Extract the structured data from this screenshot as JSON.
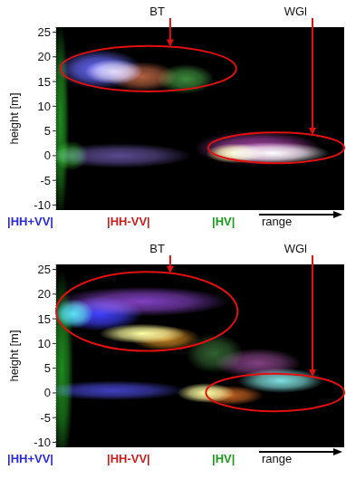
{
  "chart_data": [
    {
      "type": "image",
      "ylabel": "height [m]",
      "xlabel": "range",
      "xlim": [
        0,
        1
      ],
      "ylim": [
        -11,
        26
      ],
      "yticks": [
        -10,
        -5,
        0,
        5,
        10,
        15,
        20,
        25
      ],
      "tick_labels": "y",
      "series": [
        {
          "name": "|HH+VV|",
          "color": "#2b2bd6"
        },
        {
          "name": "|HH-VV|",
          "color": "#c81e1e"
        },
        {
          "name": "|HV|",
          "color": "#1a9a1a"
        }
      ],
      "annotations": [
        {
          "text": "BT",
          "arrow_x": 0.396,
          "x": 0.32,
          "y": 17.6,
          "rx": 0.305,
          "ry": 4.6
        },
        {
          "text": "WGl",
          "arrow_x": 0.89,
          "x": 0.764,
          "y": 1.6,
          "rx": 0.236,
          "ry": 3.1
        }
      ],
      "blobs": [
        {
          "x": 0.015,
          "y": 7,
          "rx": 0.03,
          "ry": 20,
          "color": "#1f8a1f"
        },
        {
          "x": 0.15,
          "y": 17.5,
          "rx": 0.15,
          "ry": 4,
          "color": "#6a6aff"
        },
        {
          "x": 0.2,
          "y": 17,
          "rx": 0.1,
          "ry": 2.5,
          "color": "#d0c8e0"
        },
        {
          "x": 0.3,
          "y": 16,
          "rx": 0.12,
          "ry": 3,
          "color": "#b06040"
        },
        {
          "x": 0.45,
          "y": 15.5,
          "rx": 0.1,
          "ry": 3,
          "color": "#3c8a3c"
        },
        {
          "x": 0.22,
          "y": 0,
          "rx": 0.25,
          "ry": 2.5,
          "color": "#5a4a90"
        },
        {
          "x": 0.05,
          "y": 0,
          "rx": 0.06,
          "ry": 3,
          "color": "#2a8a2a"
        },
        {
          "x": 0.7,
          "y": 1.5,
          "rx": 0.22,
          "ry": 3.5,
          "color": "#a040a0"
        },
        {
          "x": 0.75,
          "y": 0.5,
          "rx": 0.2,
          "ry": 2.2,
          "color": "#ffffff"
        },
        {
          "x": 0.62,
          "y": 0.5,
          "rx": 0.1,
          "ry": 2,
          "color": "#ffff80"
        }
      ]
    },
    {
      "type": "image",
      "ylabel": "height [m]",
      "xlabel": "range",
      "xlim": [
        0,
        1
      ],
      "ylim": [
        -11,
        26
      ],
      "yticks": [
        -10,
        -5,
        0,
        5,
        10,
        15,
        20,
        25
      ],
      "tick_labels": "y",
      "series": [
        {
          "name": "|HH+VV|",
          "color": "#2b2bd6"
        },
        {
          "name": "|HH-VV|",
          "color": "#c81e1e"
        },
        {
          "name": "|HV|",
          "color": "#1a9a1a"
        }
      ],
      "annotations": [
        {
          "text": "BT",
          "arrow_x": 0.396,
          "x": 0.315,
          "y": 16.5,
          "rx": 0.315,
          "ry": 8
        },
        {
          "text": "WGl",
          "arrow_x": 0.89,
          "x": 0.76,
          "y": 0.1,
          "rx": 0.24,
          "ry": 3.8
        }
      ],
      "blobs": [
        {
          "x": 0.02,
          "y": 5,
          "rx": 0.04,
          "ry": 20,
          "color": "#1f8a1f"
        },
        {
          "x": 0.06,
          "y": 16,
          "rx": 0.07,
          "ry": 3,
          "color": "#40e0e0"
        },
        {
          "x": 0.3,
          "y": 18.5,
          "rx": 0.3,
          "ry": 3,
          "color": "#8040c0"
        },
        {
          "x": 0.15,
          "y": 16,
          "rx": 0.15,
          "ry": 3.5,
          "color": "#4040ff"
        },
        {
          "x": 0.3,
          "y": 12,
          "rx": 0.15,
          "ry": 2,
          "color": "#ffffa0"
        },
        {
          "x": 0.38,
          "y": 11,
          "rx": 0.12,
          "ry": 2.5,
          "color": "#c08020"
        },
        {
          "x": 0.55,
          "y": 8,
          "rx": 0.1,
          "ry": 4,
          "color": "#306030"
        },
        {
          "x": 0.2,
          "y": 0.5,
          "rx": 0.25,
          "ry": 2,
          "color": "#4040c0"
        },
        {
          "x": 0.7,
          "y": 6,
          "rx": 0.15,
          "ry": 3,
          "color": "#804080"
        },
        {
          "x": 0.78,
          "y": 2.5,
          "rx": 0.15,
          "ry": 2.5,
          "color": "#80e0e0"
        },
        {
          "x": 0.6,
          "y": -0.5,
          "rx": 0.12,
          "ry": 2,
          "color": "#c06020"
        },
        {
          "x": 0.52,
          "y": 0,
          "rx": 0.1,
          "ry": 2,
          "color": "#ffffa0"
        }
      ]
    }
  ]
}
